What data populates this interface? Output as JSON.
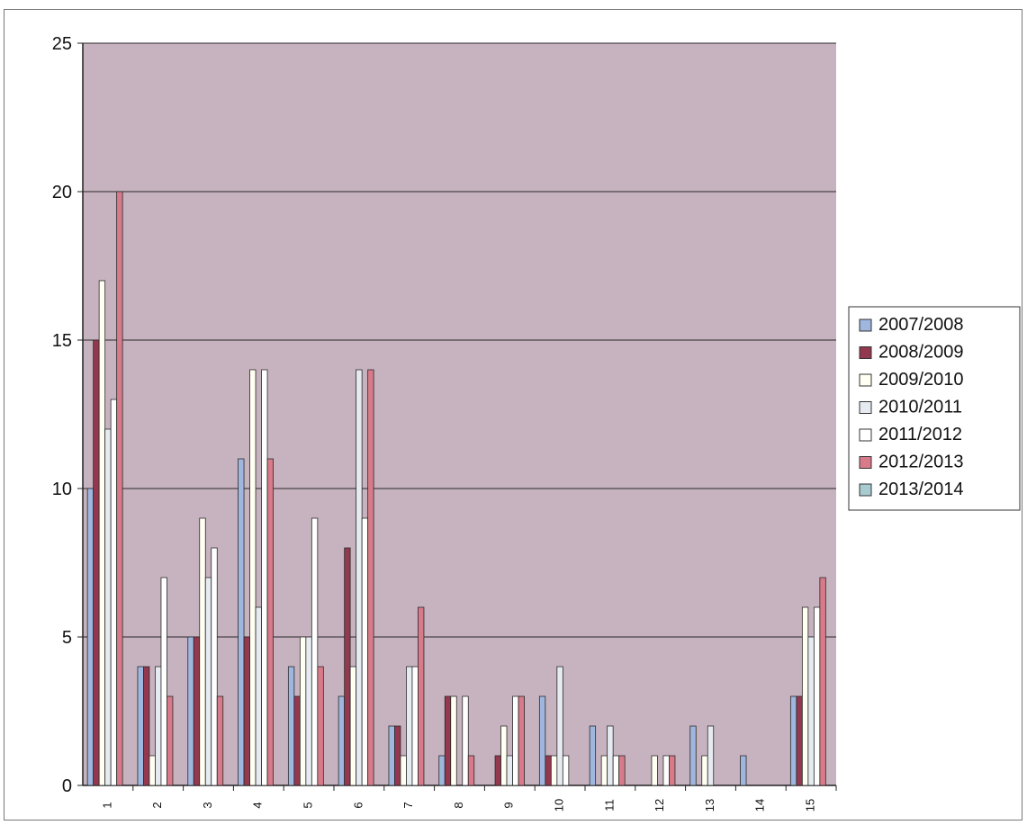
{
  "chart_data": {
    "type": "bar",
    "title": "",
    "xlabel": "",
    "ylabel": "",
    "ylim": [
      0,
      25
    ],
    "yticks": [
      0,
      5,
      10,
      15,
      20,
      25
    ],
    "grid": true,
    "legend_position": "right",
    "categories": [
      "1",
      "2",
      "3",
      "4",
      "5",
      "6",
      "7",
      "8",
      "9",
      "10",
      "11",
      "12",
      "13",
      "14",
      "15"
    ],
    "series": [
      {
        "name": "2007/2008",
        "color": "#9fb6de",
        "values": [
          10,
          4,
          5,
          11,
          4,
          3,
          2,
          1,
          0,
          3,
          2,
          0,
          2,
          1,
          3
        ]
      },
      {
        "name": "2008/2009",
        "color": "#93384f",
        "values": [
          15,
          4,
          5,
          5,
          3,
          8,
          2,
          3,
          1,
          1,
          0,
          0,
          0,
          0,
          3
        ]
      },
      {
        "name": "2009/2010",
        "color": "#fffff2",
        "values": [
          17,
          1,
          9,
          14,
          5,
          4,
          1,
          3,
          2,
          1,
          1,
          1,
          1,
          0,
          6
        ]
      },
      {
        "name": "2010/2011",
        "color": "#e6ebf2",
        "values": [
          12,
          4,
          7,
          6,
          5,
          14,
          4,
          0,
          1,
          4,
          2,
          0,
          2,
          0,
          5
        ]
      },
      {
        "name": "2011/2012",
        "color": "#ffffff",
        "values": [
          13,
          7,
          8,
          14,
          9,
          9,
          4,
          3,
          3,
          1,
          1,
          1,
          0,
          0,
          6
        ]
      },
      {
        "name": "2012/2013",
        "color": "#d87a8a",
        "values": [
          20,
          3,
          3,
          11,
          4,
          14,
          6,
          1,
          3,
          0,
          1,
          1,
          0,
          0,
          7
        ]
      },
      {
        "name": "2013/2014",
        "color": "#a8cbd0",
        "values": [
          0,
          0,
          0,
          0,
          0,
          0,
          0,
          0,
          0,
          0,
          0,
          0,
          0,
          0,
          0
        ]
      }
    ]
  },
  "colors": {
    "plot_background": "#c7b3bf",
    "gridline": "#2a2a2a",
    "bar_stroke": "#2a2a2a"
  }
}
